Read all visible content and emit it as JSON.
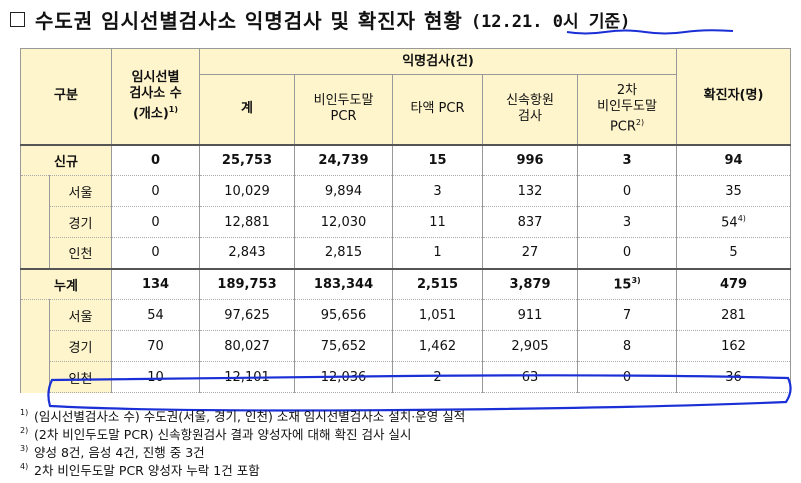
{
  "title": {
    "checkbox": "□",
    "text": "수도권 임시선별검사소 익명검사 및 확진자 현황",
    "date": "(12.21. 0시 기준)"
  },
  "header": {
    "category": "구분",
    "sites_line1": "임시선별",
    "sites_line2": "검사소 수",
    "sites_line3": "(개소)",
    "sites_note": "1)",
    "anon_group": "익명검사(건)",
    "total": "계",
    "nasal_line1": "비인두도말",
    "nasal_line2": "PCR",
    "saliva": "타액 PCR",
    "rapid_line1": "신속항원",
    "rapid_line2": "검사",
    "second_line1": "2차",
    "second_line2": "비인두도말",
    "second_line3": "PCR",
    "second_note": "2)",
    "confirmed": "확진자(명)"
  },
  "groups": [
    {
      "label": "신규",
      "total_row": {
        "sites": "0",
        "total": "25,753",
        "nasal": "24,739",
        "saliva": "15",
        "rapid": "996",
        "second": "3",
        "confirmed": "94"
      },
      "rows": [
        {
          "region": "서울",
          "sites": "0",
          "total": "10,029",
          "nasal": "9,894",
          "saliva": "3",
          "rapid": "132",
          "second": "0",
          "confirmed": "35",
          "confirmed_note": ""
        },
        {
          "region": "경기",
          "sites": "0",
          "total": "12,881",
          "nasal": "12,030",
          "saliva": "11",
          "rapid": "837",
          "second": "3",
          "confirmed": "54",
          "confirmed_note": "4)"
        },
        {
          "region": "인천",
          "sites": "0",
          "total": "2,843",
          "nasal": "2,815",
          "saliva": "1",
          "rapid": "27",
          "second": "0",
          "confirmed": "5",
          "confirmed_note": ""
        }
      ]
    },
    {
      "label": "누계",
      "total_row": {
        "sites": "134",
        "total": "189,753",
        "nasal": "183,344",
        "saliva": "2,515",
        "rapid": "3,879",
        "second": "15",
        "second_note": "3)",
        "confirmed": "479"
      },
      "rows": [
        {
          "region": "서울",
          "sites": "54",
          "total": "97,625",
          "nasal": "95,656",
          "saliva": "1,051",
          "rapid": "911",
          "second": "7",
          "confirmed": "281"
        },
        {
          "region": "경기",
          "sites": "70",
          "total": "80,027",
          "nasal": "75,652",
          "saliva": "1,462",
          "rapid": "2,905",
          "second": "8",
          "confirmed": "162"
        },
        {
          "region": "인천",
          "sites": "10",
          "total": "12,101",
          "nasal": "12,036",
          "saliva": "2",
          "rapid": "63",
          "second": "0",
          "confirmed": "36"
        }
      ]
    }
  ],
  "footnotes": [
    {
      "num": "1)",
      "text": "(임시선별검사소 수) 수도권(서울, 경기, 인천) 소재 임시선별검사소 설치·운영 실적"
    },
    {
      "num": "2)",
      "text": "(2차 비인두도말 PCR) 신속항원검사 결과 양성자에 대해 확진 검사 실시"
    },
    {
      "num": "3)",
      "text": "양성 8건, 음성 4건, 진행 중 3건"
    },
    {
      "num": "4)",
      "text": "2차 비인두도말 PCR 양성자 누락 1건 포함"
    }
  ],
  "colors": {
    "header_bg": "#fff5cc",
    "annotation_blue": "#1a2fd6"
  }
}
